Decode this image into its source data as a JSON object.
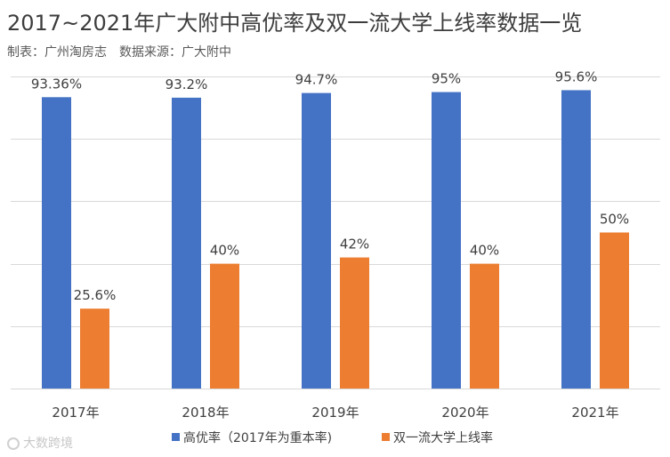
{
  "header": {
    "title": "2017~2021年广大附中高优率及双一流大学上线率数据一览",
    "maker": "制表：广州淘房志",
    "source": "数据来源：广大附中"
  },
  "watermark": {
    "text": "大数跨境"
  },
  "colors": {
    "series_1": "#4472c4",
    "series_2": "#ed7d31",
    "grid": "#d9d9d9"
  },
  "chart_data": {
    "type": "bar",
    "categories": [
      "2017年",
      "2018年",
      "2019年",
      "2020年",
      "2021年"
    ],
    "series": [
      {
        "name": "高优率（2017年为重本率)",
        "values": [
          93.36,
          93.2,
          94.7,
          95,
          95.6
        ],
        "labels": [
          "93.36%",
          "93.2%",
          "94.7%",
          "95%",
          "95.6%"
        ]
      },
      {
        "name": "双一流大学上线率",
        "values": [
          25.6,
          40,
          42,
          40,
          50
        ],
        "labels": [
          "25.6%",
          "40%",
          "42%",
          "40%",
          "50%"
        ]
      }
    ],
    "ylim": [
      0,
      100
    ],
    "grid": true,
    "y_tick_labels_shown": false,
    "legend_position": "bottom"
  }
}
